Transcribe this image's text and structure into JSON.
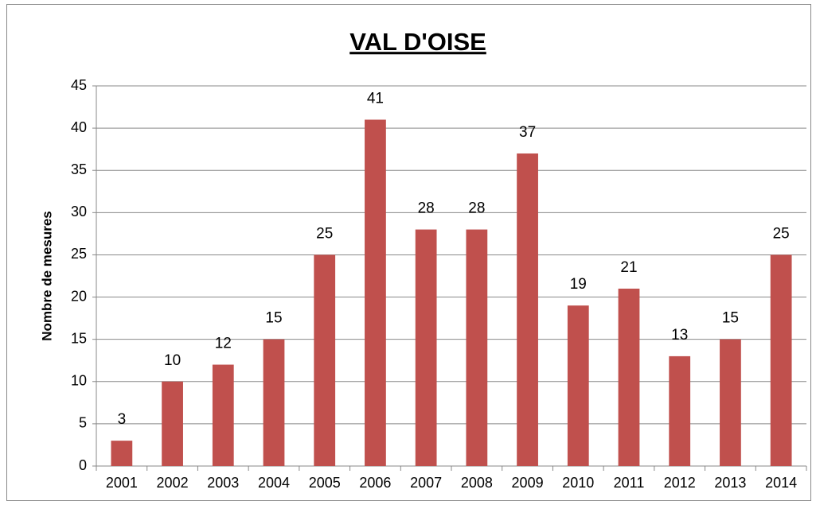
{
  "chart_data": {
    "type": "bar",
    "title": "VAL D'OISE",
    "y_label": "Nombre de mesures",
    "categories": [
      "2001",
      "2002",
      "2003",
      "2004",
      "2005",
      "2006",
      "2007",
      "2008",
      "2009",
      "2010",
      "2011",
      "2012",
      "2013",
      "2014"
    ],
    "values": [
      3,
      10,
      12,
      15,
      25,
      41,
      28,
      28,
      37,
      19,
      21,
      13,
      15,
      25
    ],
    "color": "#c0504d",
    "ylim": [
      0,
      45
    ],
    "yticks": [
      0,
      5,
      10,
      15,
      20,
      25,
      30,
      35,
      40,
      45
    ],
    "grid": true
  }
}
